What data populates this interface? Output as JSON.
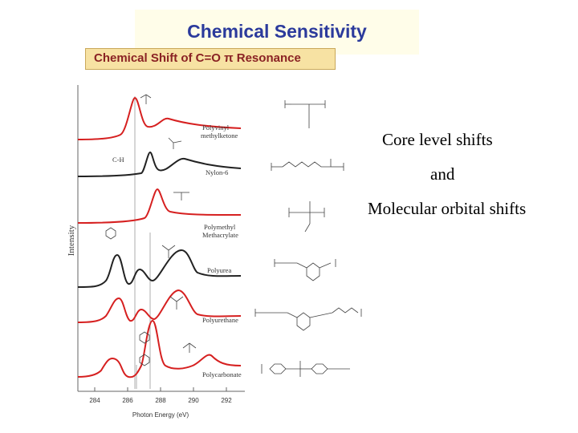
{
  "slide": {
    "title": "Chemical Sensitivity",
    "subtitle": "Chemical Shift of C=O π Resonance",
    "notes": [
      "Core level shifts",
      "and",
      "Molecular orbital shifts"
    ]
  },
  "figure": {
    "ylabel": "Intensity",
    "xlabel": "Photon Energy (eV)",
    "xticks": [
      "284",
      "286",
      "288",
      "290",
      "292"
    ],
    "bond_label": "C-H",
    "spectra": [
      {
        "label_line1": "Polyvinyl",
        "label_line2": "methylketone",
        "color": "#d62020"
      },
      {
        "label_line1": "Nylon-6",
        "label_line2": "",
        "color": "#222222"
      },
      {
        "label_line1": "Polymethyl",
        "label_line2": "Methacrylate",
        "color": "#d62020"
      },
      {
        "label_line1": "Polyurea",
        "label_line2": "",
        "color": "#222222"
      },
      {
        "label_line1": "Polyurethane",
        "label_line2": "",
        "color": "#d62020"
      },
      {
        "label_line1": "Polycarbonate",
        "label_line2": "",
        "color": "#d62020"
      }
    ]
  },
  "colors": {
    "title": "#2b3a9c",
    "subtitle_text": "#8a2224",
    "subtitle_bg": "#f7e2a3",
    "title_bg": "#fffde9"
  }
}
